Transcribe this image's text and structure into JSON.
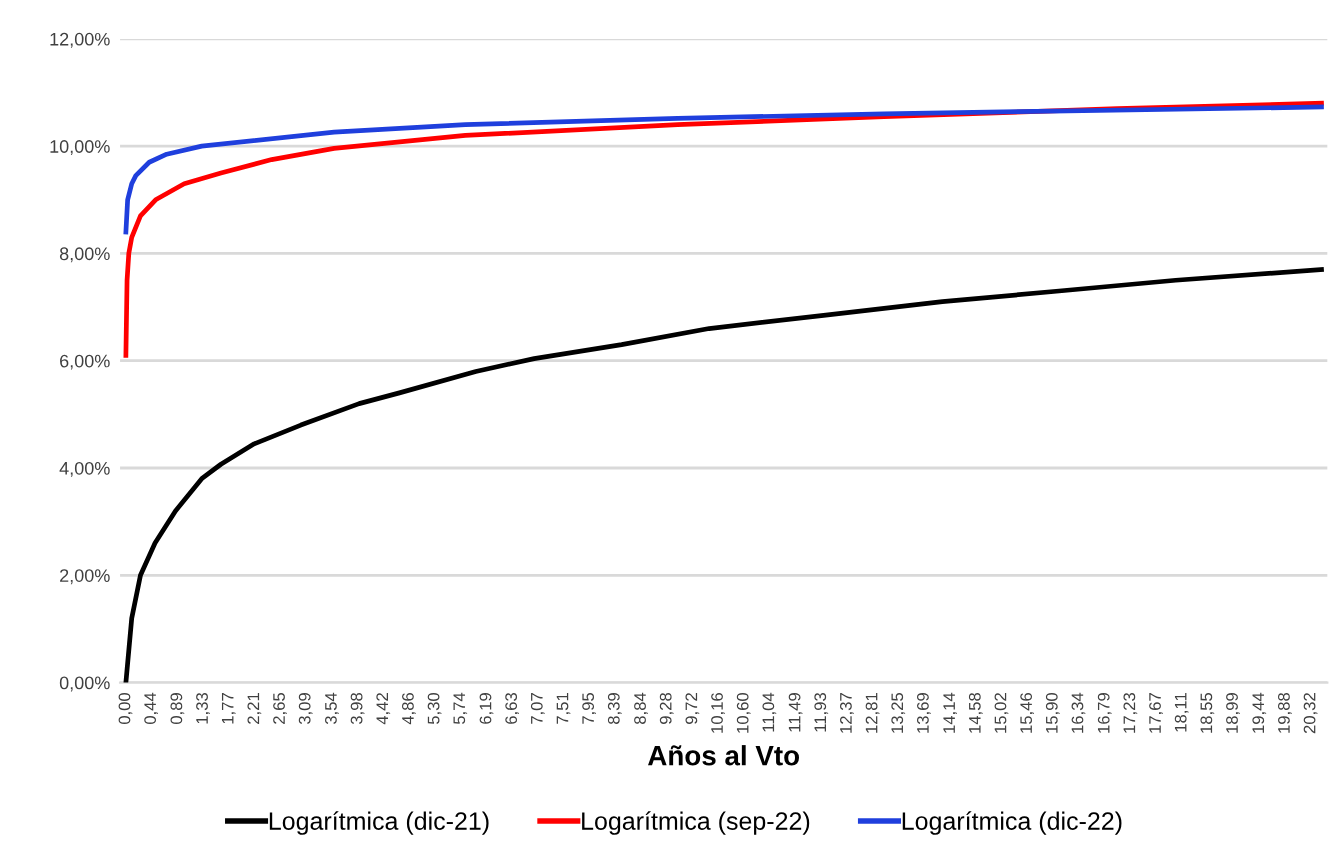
{
  "chart_data": {
    "type": "line",
    "xlabel": "Años al Vto",
    "legend": "bottom",
    "grid": "y",
    "line_style": "solid",
    "marker": "none",
    "xlim": [
      -0.1,
      20.6
    ],
    "ylim": [
      0,
      12
    ],
    "yticks": [
      {
        "value": 0,
        "label": "0,00%"
      },
      {
        "value": 2,
        "label": "2,00%"
      },
      {
        "value": 4,
        "label": "4,00%"
      },
      {
        "value": 6,
        "label": "6,00%"
      },
      {
        "value": 8,
        "label": "8,00%"
      },
      {
        "value": 10,
        "label": "10,00%"
      },
      {
        "value": 12,
        "label": "12,00%"
      }
    ],
    "xticks": [
      {
        "value": 0,
        "label": "0,00"
      },
      {
        "value": 0.44,
        "label": "0,44"
      },
      {
        "value": 0.89,
        "label": "0,89"
      },
      {
        "value": 1.33,
        "label": "1,33"
      },
      {
        "value": 1.77,
        "label": "1,77"
      },
      {
        "value": 2.21,
        "label": "2,21"
      },
      {
        "value": 2.65,
        "label": "2,65"
      },
      {
        "value": 3.09,
        "label": "3,09"
      },
      {
        "value": 3.54,
        "label": "3,54"
      },
      {
        "value": 3.98,
        "label": "3,98"
      },
      {
        "value": 4.42,
        "label": "4,42"
      },
      {
        "value": 4.86,
        "label": "4,86"
      },
      {
        "value": 5.3,
        "label": "5,30"
      },
      {
        "value": 5.74,
        "label": "5,74"
      },
      {
        "value": 6.19,
        "label": "6,19"
      },
      {
        "value": 6.63,
        "label": "6,63"
      },
      {
        "value": 7.07,
        "label": "7,07"
      },
      {
        "value": 7.51,
        "label": "7,51"
      },
      {
        "value": 7.95,
        "label": "7,95"
      },
      {
        "value": 8.39,
        "label": "8,39"
      },
      {
        "value": 8.84,
        "label": "8,84"
      },
      {
        "value": 9.28,
        "label": "9,28"
      },
      {
        "value": 9.72,
        "label": "9,72"
      },
      {
        "value": 10.16,
        "label": "10,16"
      },
      {
        "value": 10.6,
        "label": "10,60"
      },
      {
        "value": 11.04,
        "label": "11,04"
      },
      {
        "value": 11.49,
        "label": "11,49"
      },
      {
        "value": 11.93,
        "label": "11,93"
      },
      {
        "value": 12.37,
        "label": "12,37"
      },
      {
        "value": 12.81,
        "label": "12,81"
      },
      {
        "value": 13.25,
        "label": "13,25"
      },
      {
        "value": 13.69,
        "label": "13,69"
      },
      {
        "value": 14.14,
        "label": "14,14"
      },
      {
        "value": 14.58,
        "label": "14,58"
      },
      {
        "value": 15.02,
        "label": "15,02"
      },
      {
        "value": 15.46,
        "label": "15,46"
      },
      {
        "value": 15.9,
        "label": "15,90"
      },
      {
        "value": 16.34,
        "label": "16,34"
      },
      {
        "value": 16.79,
        "label": "16,79"
      },
      {
        "value": 17.23,
        "label": "17,23"
      },
      {
        "value": 17.67,
        "label": "17,67"
      },
      {
        "value": 18.11,
        "label": "18,11"
      },
      {
        "value": 18.55,
        "label": "18,55"
      },
      {
        "value": 18.99,
        "label": "18,99"
      },
      {
        "value": 19.44,
        "label": "19,44"
      },
      {
        "value": 19.88,
        "label": "19,88"
      },
      {
        "value": 20.32,
        "label": "20,32"
      }
    ],
    "series": [
      {
        "name": "Logarítmica (dic-21)",
        "color": "#000000",
        "x": [
          0,
          0.1,
          0.25,
          0.5,
          0.85,
          1.3,
          1.63,
          2.2,
          3.0,
          4.0,
          4.69,
          6.0,
          7.0,
          8.5,
          10,
          12,
          14,
          16,
          18,
          20.5
        ],
        "values": [
          0,
          1.2,
          2.0,
          2.6,
          3.2,
          3.8,
          4.07,
          4.45,
          4.8,
          5.2,
          5.4,
          5.8,
          6.04,
          6.3,
          6.6,
          6.85,
          7.1,
          7.3,
          7.5,
          7.7
        ]
      },
      {
        "name": "Logarítmica (sep-22)",
        "color": "#ff0000",
        "x": [
          0,
          0.02,
          0.05,
          0.1,
          0.25,
          0.51,
          1.0,
          1.63,
          2.5,
          3.57,
          5.82,
          9.46,
          13,
          17,
          20.5
        ],
        "values": [
          6.1,
          7.5,
          8.0,
          8.3,
          8.7,
          9.0,
          9.3,
          9.5,
          9.75,
          9.96,
          10.2,
          10.4,
          10.55,
          10.7,
          10.8
        ]
      },
      {
        "name": "Logarítmica (dic-22)",
        "color": "#1f3fdd",
        "x": [
          0,
          0.03,
          0.1,
          0.17,
          0.4,
          0.7,
          1.3,
          3.57,
          5.82,
          9.46,
          13,
          15.6,
          20.5
        ],
        "values": [
          8.4,
          9.0,
          9.3,
          9.45,
          9.7,
          9.85,
          10.0,
          10.26,
          10.4,
          10.52,
          10.6,
          10.65,
          10.73
        ]
      }
    ]
  }
}
